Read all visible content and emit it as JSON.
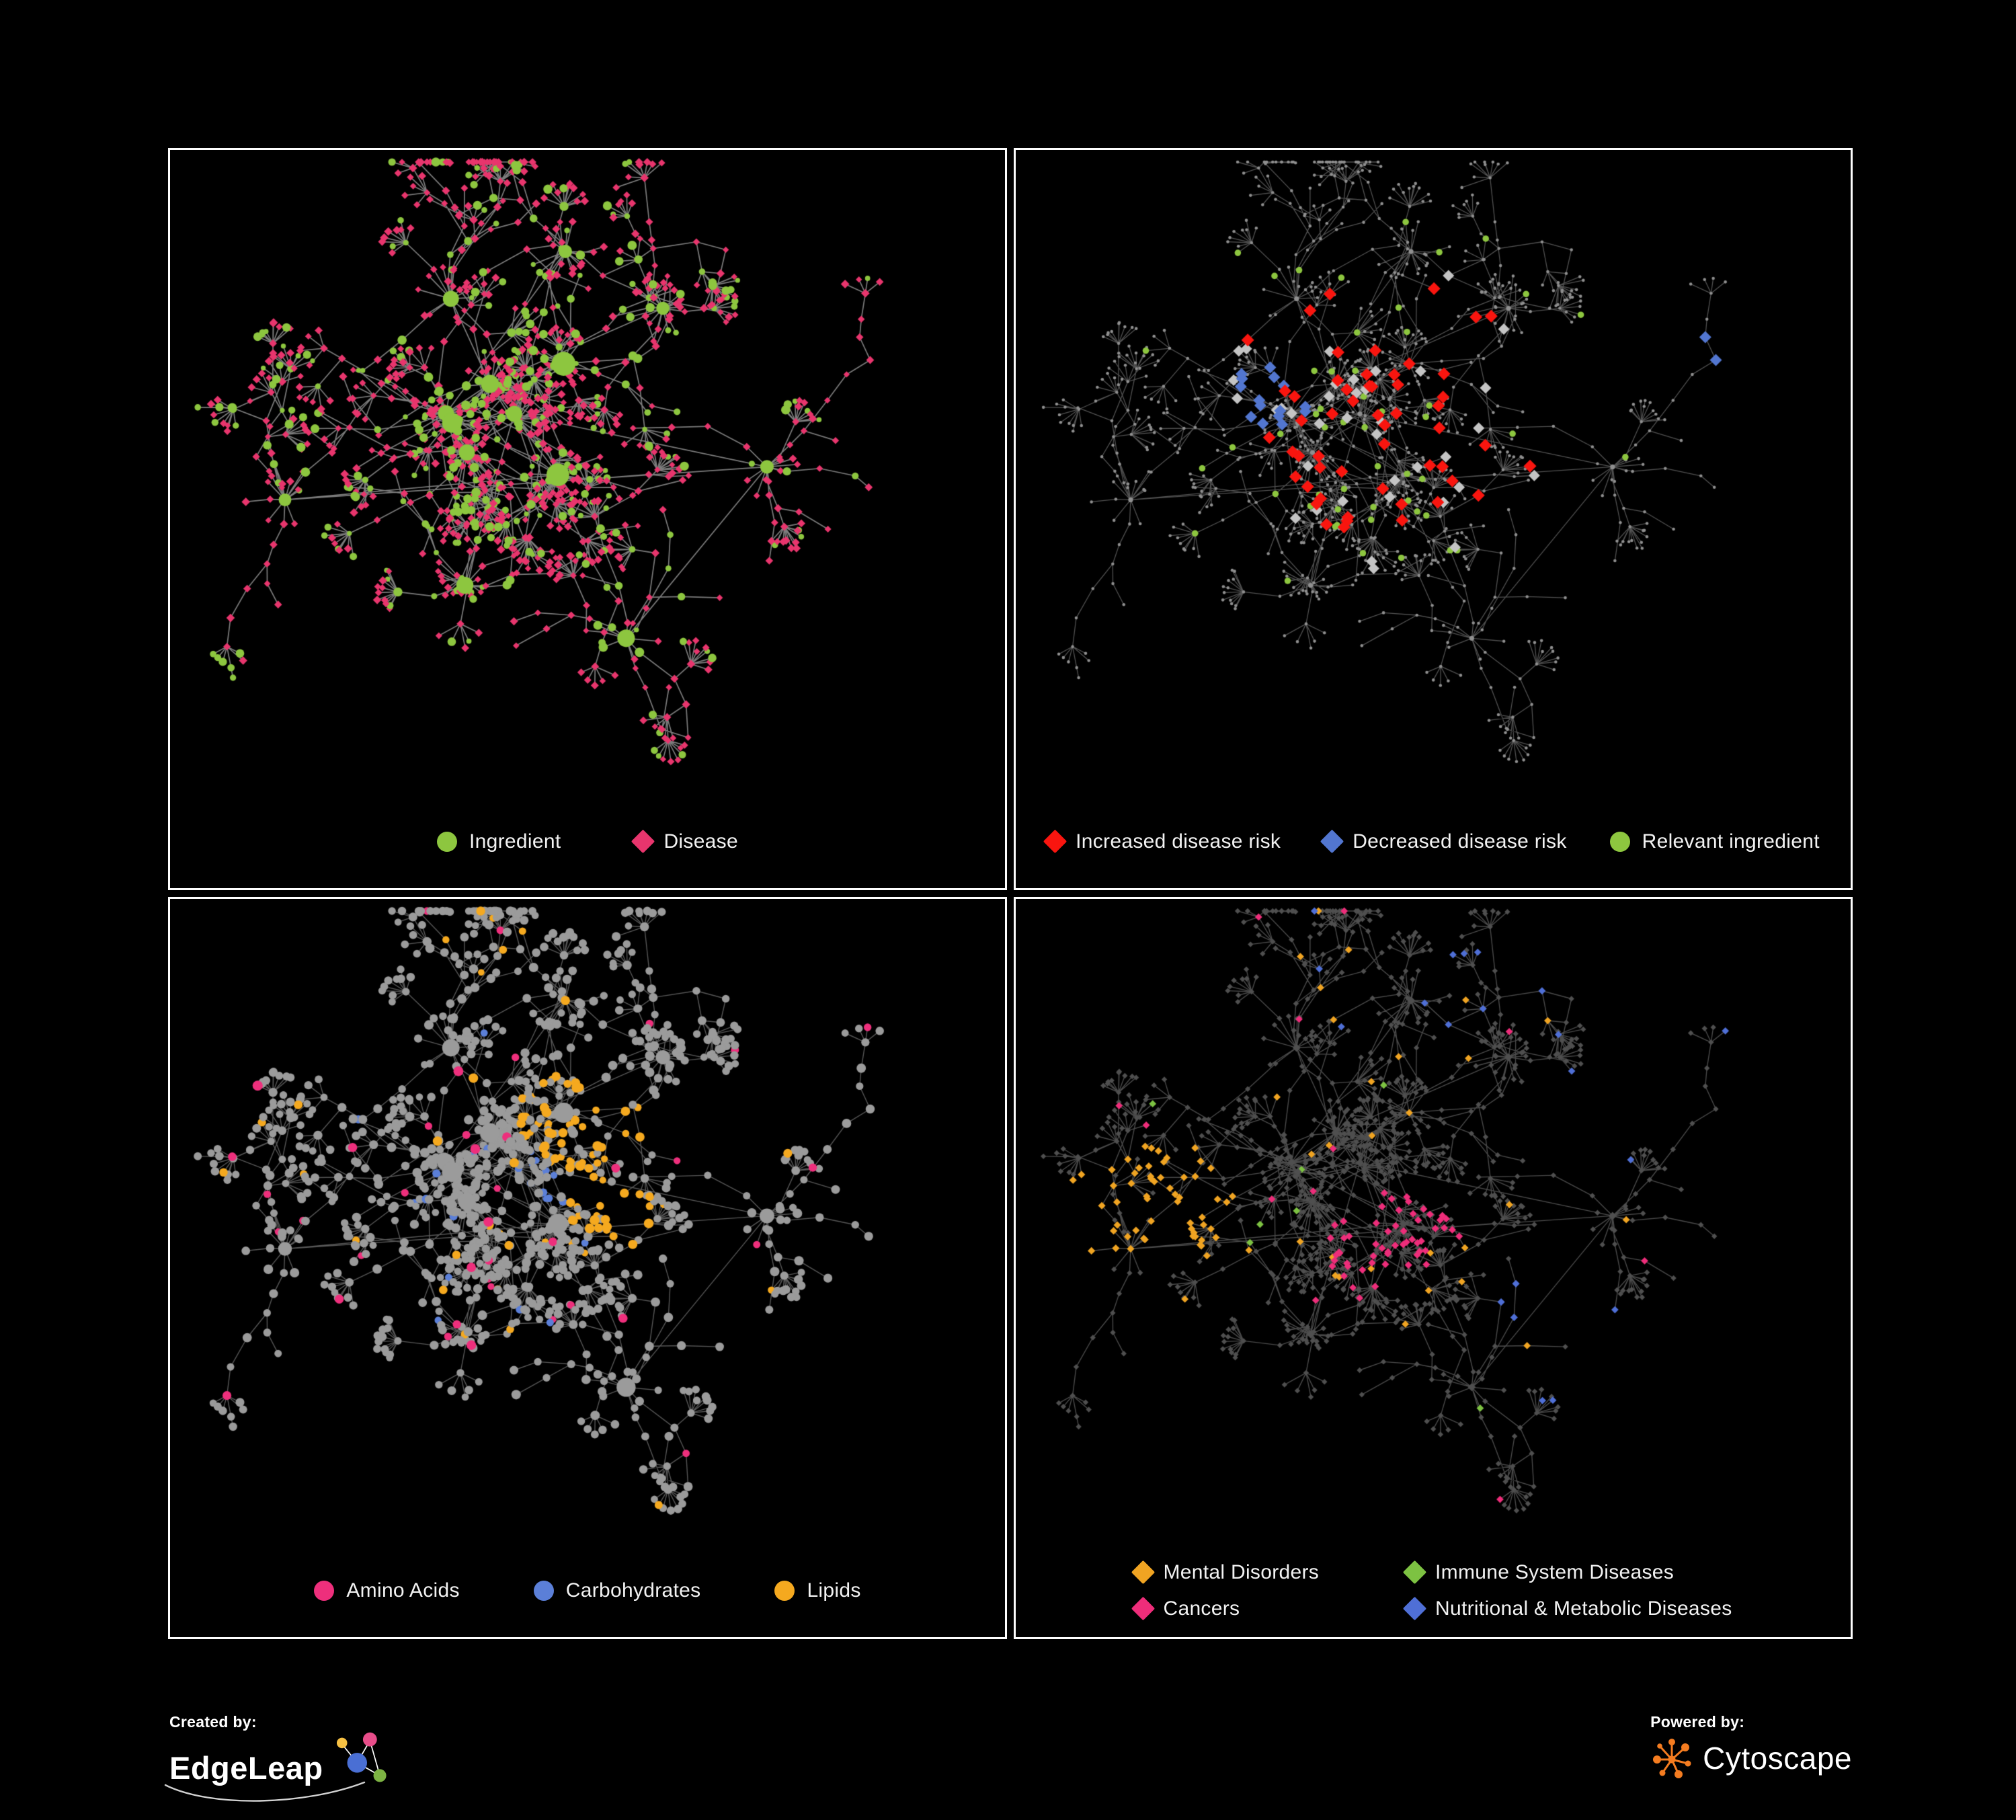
{
  "page": {
    "background": "#000000",
    "panel_border": "#fdfdfd"
  },
  "panels": [
    {
      "id": "ingredient-disease",
      "edge_color": "#8a8a8a",
      "legend": [
        {
          "shape": "circle",
          "color": "#8dc63f",
          "label": "Ingredient"
        },
        {
          "shape": "diamond",
          "color": "#e8356d",
          "label": "Disease"
        }
      ]
    },
    {
      "id": "disease-risk",
      "edge_color": "#5f5f5f",
      "legend": [
        {
          "shape": "diamond",
          "color": "#f9150f",
          "label": "Increased disease risk"
        },
        {
          "shape": "diamond",
          "color": "#5276d0",
          "label": "Decreased disease risk"
        },
        {
          "shape": "circle",
          "color": "#8dc63f",
          "label": "Relevant ingredient"
        }
      ]
    },
    {
      "id": "macronutrients",
      "edge_color": "#666666",
      "legend": [
        {
          "shape": "circle",
          "color": "#ee2f7c",
          "label": "Amino Acids"
        },
        {
          "shape": "circle",
          "color": "#5b7fd8",
          "label": "Carbohydrates"
        },
        {
          "shape": "circle",
          "color": "#f5a91f",
          "label": "Lipids"
        }
      ]
    },
    {
      "id": "disease-categories",
      "edge_color": "#575757",
      "legend": [
        {
          "shape": "diamond",
          "color": "#f0a422",
          "label": "Mental Disorders"
        },
        {
          "shape": "diamond",
          "color": "#7dc242",
          "label": "Immune System Diseases"
        },
        {
          "shape": "diamond",
          "color": "#ee2d7a",
          "label": "Cancers"
        },
        {
          "shape": "diamond",
          "color": "#4f6fd6",
          "label": "Nutritional & Metabolic Diseases"
        }
      ]
    }
  ],
  "network_style": {
    "gray_small": "#8f8f8f",
    "gray_node": "#9b9b9b",
    "dark_node": "#4f4f4f",
    "silver": "#c4c4c4",
    "edgeleap_orange": "#f6c043",
    "edgeleap_pink": "#e84d8a",
    "edgeleap_blue": "#4a6fd4",
    "edgeleap_green": "#7db343",
    "cytoscape_orange": "#f47c20"
  },
  "footer": {
    "created_by": "Created by:",
    "creator_brand": "EdgeLeap",
    "powered_by": "Powered by:",
    "engine_brand": "Cytoscape"
  }
}
